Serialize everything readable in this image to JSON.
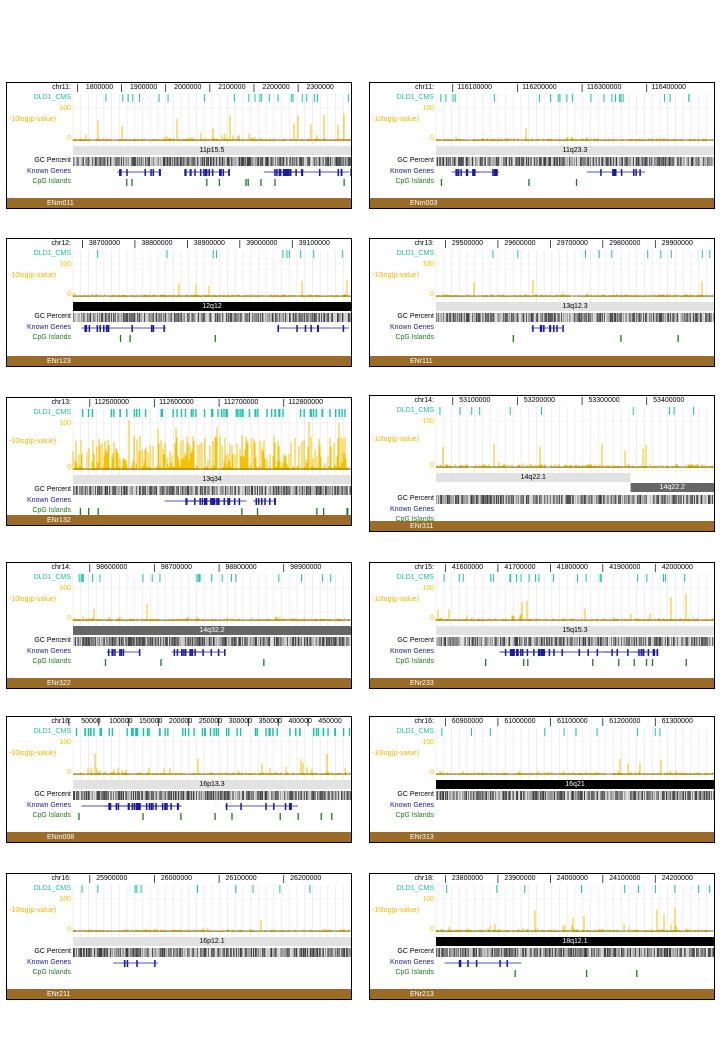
{
  "labels": {
    "dld1": "DLD1_CMS",
    "ylabel": "-10log(p-value)",
    "y100": "100",
    "y0": "0",
    "gc": "GC Percent",
    "genes": "Known Genes",
    "cpg": "CpG Islands"
  },
  "colors": {
    "dld1": "#19c4a6",
    "signal": "#f5c200",
    "genes": "#1a1a9c",
    "cpg": "#1d7a1d",
    "enr": "#9b6b28"
  },
  "panels": [
    {
      "chrom": "chr11:",
      "ticks": [
        "1800000",
        "1900000",
        "2000000",
        "2100000",
        "2200000",
        "2300000"
      ],
      "bands": [
        {
          "label": "11p15.5",
          "w": 1,
          "style": "light"
        }
      ],
      "encode": "ENm011",
      "tall": false,
      "genes": "dense",
      "cpg": "some",
      "dld1": "sparse",
      "signal": "mid"
    },
    {
      "chrom": "chr11:",
      "ticks": [
        "116100000",
        "116200000",
        "116300000",
        "116400000"
      ],
      "bands": [
        {
          "label": "11q23.3",
          "w": 1,
          "style": "light"
        }
      ],
      "encode": "ENm003",
      "tall": false,
      "genes": "mid",
      "cpg": "few",
      "dld1": "sparse",
      "signal": "low"
    },
    {
      "chrom": "chr12:",
      "ticks": [
        "38700000",
        "38800000",
        "38900000",
        "39000000",
        "39100000"
      ],
      "bands": [
        {
          "label": "12q12",
          "w": 1,
          "style": "black"
        }
      ],
      "encode": "ENr123",
      "tall": false,
      "genes": "mid",
      "cpg": "few",
      "dld1": "few",
      "signal": "low"
    },
    {
      "chrom": "chr13:",
      "ticks": [
        "29500000",
        "29600000",
        "29700000",
        "29800000",
        "29900000"
      ],
      "bands": [
        {
          "label": "13q12.3",
          "w": 1,
          "style": "light"
        }
      ],
      "encode": "ENr111",
      "tall": false,
      "genes": "single",
      "cpg": "few",
      "dld1": "few",
      "signal": "low"
    },
    {
      "chrom": "chr13:",
      "ticks": [
        "112500000",
        "112600000",
        "112700000",
        "112800000"
      ],
      "bands": [
        {
          "label": "13q34",
          "w": 1,
          "style": "light"
        }
      ],
      "encode": "ENr132",
      "tall": true,
      "genes": "dense",
      "cpg": "some",
      "dld1": "dense",
      "signal": "high"
    },
    {
      "chrom": "chr14:",
      "ticks": [
        "53100000",
        "53200000",
        "53300000",
        "53400000"
      ],
      "bands": [
        {
          "label": "14q22.1",
          "w": 0.7,
          "style": "light"
        },
        {
          "label": "14q22.2",
          "w": 0.3,
          "style": "gray"
        }
      ],
      "encode": "ENr311",
      "tall": true,
      "genes": "none",
      "cpg": "none",
      "dld1": "few",
      "signal": "low"
    },
    {
      "chrom": "chr14:",
      "ticks": [
        "98600000",
        "98700000",
        "98800000",
        "98900000"
      ],
      "bands": [
        {
          "label": "14q32.2",
          "w": 1,
          "style": "gray"
        }
      ],
      "encode": "ENr322",
      "tall": false,
      "genes": "mid",
      "cpg": "few",
      "dld1": "sparse",
      "signal": "low"
    },
    {
      "chrom": "chr15:",
      "ticks": [
        "41600000",
        "41700000",
        "41800000",
        "41900000",
        "42000000"
      ],
      "bands": [
        {
          "label": "15q15.3",
          "w": 1,
          "style": "light"
        }
      ],
      "encode": "ENr233",
      "tall": false,
      "genes": "dense",
      "cpg": "some",
      "dld1": "sparse",
      "signal": "mid"
    },
    {
      "chrom": "chr16:",
      "ticks": [
        "50000",
        "100000",
        "150000",
        "200000",
        "250000",
        "300000",
        "350000",
        "400000",
        "450000"
      ],
      "bands": [
        {
          "label": "16p13.3",
          "w": 1,
          "style": "light"
        }
      ],
      "encode": "ENm008",
      "tall": false,
      "genes": "dense",
      "cpg": "some",
      "dld1": "dense",
      "signal": "mid"
    },
    {
      "chrom": "chr16:",
      "ticks": [
        "60900000",
        "61000000",
        "61100000",
        "61200000",
        "61300000"
      ],
      "bands": [
        {
          "label": "16q21",
          "w": 1,
          "style": "black"
        }
      ],
      "encode": "ENr313",
      "tall": false,
      "genes": "none",
      "cpg": "none",
      "dld1": "few",
      "signal": "low"
    },
    {
      "chrom": "chr16:",
      "ticks": [
        "25900000",
        "26000000",
        "26100000",
        "26200000"
      ],
      "bands": [
        {
          "label": "16p12.1",
          "w": 1,
          "style": "light"
        }
      ],
      "encode": "ENr211",
      "tall": false,
      "genes": "single",
      "cpg": "none",
      "dld1": "few",
      "signal": "low"
    },
    {
      "chrom": "chr18:",
      "ticks": [
        "23800000",
        "23900000",
        "24000000",
        "24100000",
        "24200000"
      ],
      "bands": [
        {
          "label": "18q12.1",
          "w": 1,
          "style": "black"
        }
      ],
      "encode": "ENr213",
      "tall": false,
      "genes": "single",
      "cpg": "few",
      "dld1": "few",
      "signal": "mid"
    }
  ]
}
